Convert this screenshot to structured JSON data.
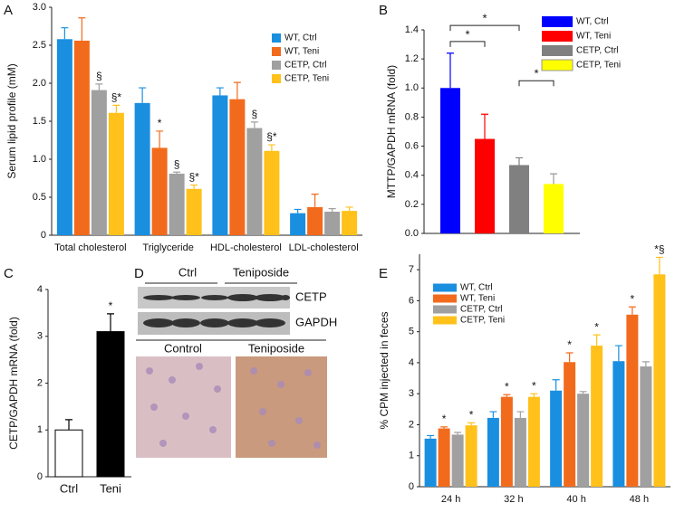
{
  "chart_data": [
    {
      "type": "bar",
      "panel": "A",
      "y_label": "Serum lipid profile (mM)",
      "categories": [
        "Total cholesterol",
        "Triglyceride",
        "HDL-cholesterol",
        "LDL-cholesterol"
      ],
      "ylim": [
        0,
        3.0
      ],
      "yticks": [
        0,
        0.5,
        {
          "value": 1,
          "label": "1.0"
        },
        1.5,
        {
          "value": 2,
          "label": "2.0"
        },
        2.5,
        {
          "value": 3,
          "label": "3.0"
        }
      ],
      "series": [
        {
          "name": "WT, Ctrl",
          "color": "#1a8fe0",
          "values": [
            2.58,
            1.74,
            1.84,
            0.29
          ],
          "errors": [
            0.15,
            0.2,
            0.1,
            0.05
          ],
          "markers": [
            null,
            null,
            null,
            null
          ]
        },
        {
          "name": "WT, Teni",
          "color": "#f26b1d",
          "values": [
            2.56,
            1.15,
            1.79,
            0.37
          ],
          "errors": [
            0.3,
            0.22,
            0.22,
            0.17
          ],
          "markers": [
            null,
            "*",
            null,
            null
          ]
        },
        {
          "name": "CETP, Ctrl",
          "color": "#a0a0a0",
          "values": [
            1.91,
            0.81,
            1.41,
            0.31
          ],
          "errors": [
            0.08,
            0.02,
            0.08,
            0.04
          ],
          "markers": [
            "§",
            "§",
            "§",
            null
          ]
        },
        {
          "name": "CETP, Teni",
          "color": "#ffc11a",
          "values": [
            1.61,
            0.61,
            1.11,
            0.32
          ],
          "errors": [
            0.1,
            0.05,
            0.08,
            0.05
          ],
          "markers": [
            "§*",
            "§*",
            "§*",
            null
          ]
        }
      ]
    },
    {
      "type": "bar",
      "panel": "B",
      "y_label": "MTTP/GAPDH mRNA (fold)",
      "ylim": [
        0,
        1.4
      ],
      "yticks": [
        {
          "value": 0,
          "label": "0.0"
        },
        0.2,
        0.4,
        0.6,
        0.8,
        {
          "value": 1,
          "label": "1.0"
        },
        1.2,
        1.4
      ],
      "series": [
        {
          "name": "WT, Ctrl",
          "color": "#0000ff",
          "values": [
            1.0
          ],
          "errors": [
            0.24
          ]
        },
        {
          "name": "WT, Teni",
          "color": "#ff0000",
          "values": [
            0.65
          ],
          "errors": [
            0.17
          ]
        },
        {
          "name": "CETP, Ctrl",
          "color": "#808080",
          "values": [
            0.47
          ],
          "errors": [
            0.05
          ]
        },
        {
          "name": "CETP, Teni",
          "color": "#ffff00",
          "values": [
            0.34
          ],
          "errors": [
            0.07
          ]
        }
      ],
      "brackets": [
        {
          "label": "*"
        },
        {
          "label": "*"
        },
        {
          "label": "*"
        }
      ]
    },
    {
      "type": "bar",
      "panel": "C",
      "y_label": "CETP/GAPDH mRNA (fold)",
      "categories": [
        "Ctrl",
        "Teni"
      ],
      "ylim": [
        0,
        4
      ],
      "yticks": [
        0,
        1,
        2,
        3,
        4
      ],
      "series": [
        {
          "colors": [
            "#ffffff",
            "#000000"
          ],
          "values": [
            1.0,
            3.1
          ],
          "errors": [
            0.22,
            0.38
          ],
          "markers": [
            null,
            "*"
          ]
        }
      ]
    },
    {
      "type": "bar",
      "panel": "E",
      "y_label": "% CPM injected in feces",
      "categories": [
        "24 h",
        "32 h",
        "40 h",
        "48 h"
      ],
      "ylim": [
        0,
        7.5
      ],
      "yticks": [
        0,
        1,
        2,
        3,
        4,
        5,
        6,
        7
      ],
      "series": [
        {
          "name": "WT, Ctrl",
          "color": "#1a8fe0",
          "values": [
            1.55,
            2.22,
            3.1,
            4.05
          ],
          "errors": [
            0.1,
            0.2,
            0.35,
            0.5
          ],
          "markers": [
            null,
            null,
            null,
            null
          ]
        },
        {
          "name": "WT, Teni",
          "color": "#f26b1d",
          "values": [
            1.88,
            2.9,
            4.02,
            5.55
          ],
          "errors": [
            0.05,
            0.07,
            0.3,
            0.25
          ],
          "markers": [
            "*",
            "*",
            "*",
            "*"
          ]
        },
        {
          "name": "CETP, Ctrl",
          "color": "#a0a0a0",
          "values": [
            1.68,
            2.22,
            3.0,
            3.88
          ],
          "errors": [
            0.07,
            0.2,
            0.07,
            0.15
          ],
          "markers": [
            null,
            null,
            null,
            null
          ]
        },
        {
          "name": "CETP, Teni",
          "color": "#ffc11a",
          "values": [
            1.98,
            2.9,
            4.55,
            6.85
          ],
          "errors": [
            0.08,
            0.1,
            0.35,
            0.55
          ],
          "markers": [
            "*",
            "*",
            "*",
            "*§"
          ]
        }
      ]
    }
  ],
  "panel_d": {
    "panel": "D",
    "blot_groups": [
      "Ctrl",
      "Teniposide"
    ],
    "blot_rows": [
      "CETP",
      "GAPDH"
    ],
    "tissue_labels": [
      "Control",
      "Teniposide"
    ]
  }
}
